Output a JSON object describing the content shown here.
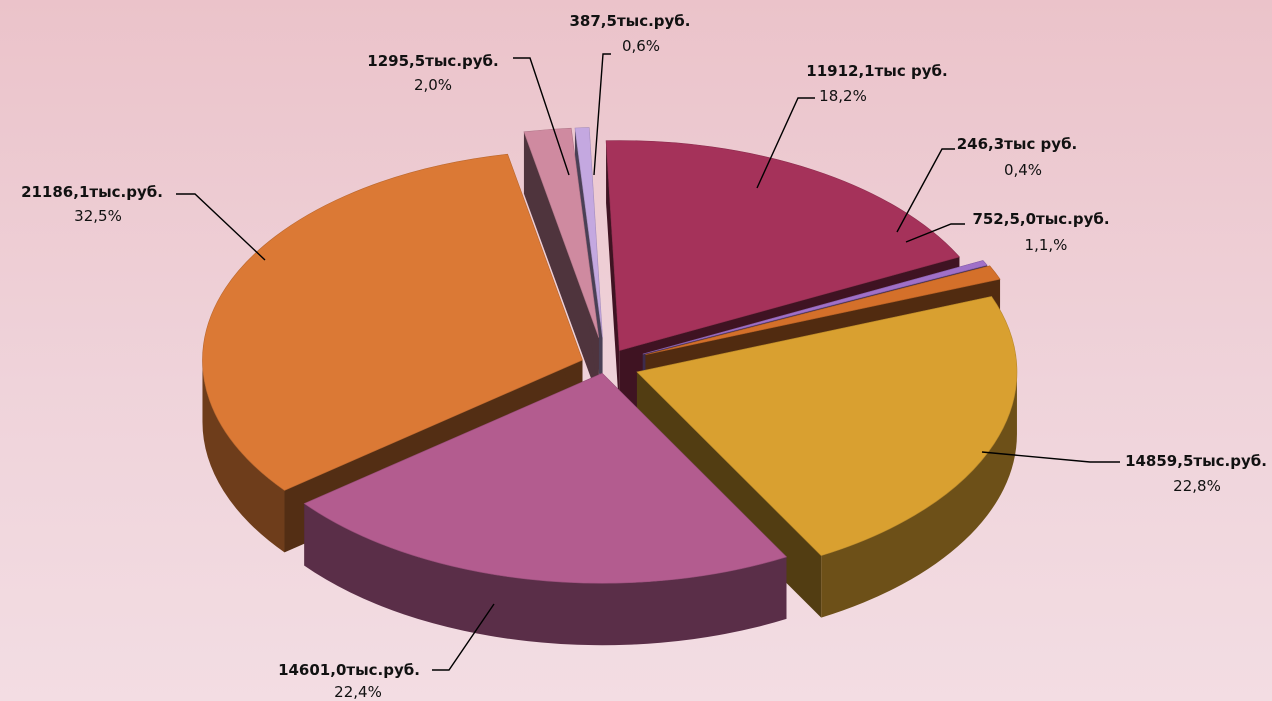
{
  "chart_data": {
    "type": "pie",
    "style": "3d-exploded",
    "slices": [
      {
        "value_label": "11912,1тыс руб.",
        "percent_label": "18,2%",
        "percent": 18.2,
        "color": "#a5325a"
      },
      {
        "value_label": "246,3тыс руб.",
        "percent_label": "0,4%",
        "percent": 0.4,
        "color": "#a070c8"
      },
      {
        "value_label": "752,5,0тыс.руб.",
        "percent_label": "1,1,%",
        "percent": 1.1,
        "color": "#d4702a"
      },
      {
        "value_label": "14859,5тыс.руб.",
        "percent_label": "22,8%",
        "percent": 22.8,
        "color": "#d9a030"
      },
      {
        "value_label": "14601,0тыс.руб.",
        "percent_label": "22,4%",
        "percent": 22.4,
        "color": "#b35c8f"
      },
      {
        "value_label": "21186,1тыс.руб.",
        "percent_label": "32,5%",
        "percent": 32.5,
        "color": "#db7935"
      },
      {
        "value_label": "1295,5тыс.руб.",
        "percent_label": "2,0%",
        "percent": 2.0,
        "color": "#cf8aa0"
      },
      {
        "value_label": "387,5тыс.руб.",
        "percent_label": "0,6%",
        "percent": 0.6,
        "color": "#c4a8e0"
      }
    ]
  }
}
